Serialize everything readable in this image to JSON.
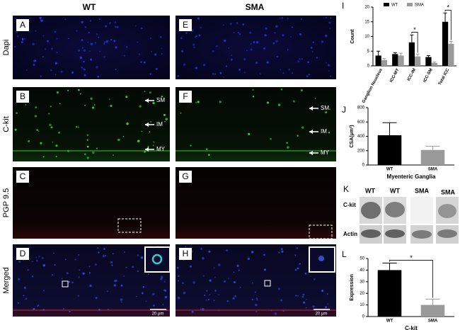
{
  "figure": {
    "columns": [
      "WT",
      "SMA"
    ],
    "rows": [
      "Dapi",
      "C-kit",
      "PGP 9.5",
      "Merged"
    ],
    "panel_letters": [
      [
        "A",
        "E"
      ],
      [
        "B",
        "F"
      ],
      [
        "C",
        "G"
      ],
      [
        "D",
        "H"
      ]
    ],
    "layer_labels": [
      "SM",
      "IM",
      "MY"
    ],
    "scale_bar": "20 μm"
  },
  "blot": {
    "panel": "K",
    "lanes": [
      "WT",
      "WT",
      "SMA",
      "SMA"
    ],
    "bands": [
      "C-kit",
      "Actin"
    ]
  },
  "chart_data": [
    {
      "type": "bar",
      "panel": "I",
      "ylabel": "Count",
      "ylim": [
        0,
        20
      ],
      "yticks": [
        0,
        5,
        10,
        15,
        20
      ],
      "categories": [
        "Ganglion Neucleus",
        "ICC-MY",
        "ICC-IM",
        "ICC-SM",
        "Total ICC"
      ],
      "series": [
        {
          "name": "WT",
          "color": "#000000",
          "values": [
            3.5,
            4,
            8,
            3,
            15
          ],
          "errors": [
            1.5,
            0.5,
            2.5,
            0.5,
            3
          ]
        },
        {
          "name": "SMA",
          "color": "#9a9a9a",
          "values": [
            2,
            3.5,
            3.2,
            1,
            7.5
          ],
          "errors": [
            0.5,
            0.8,
            0.8,
            0.3,
            0.8
          ]
        }
      ],
      "annotations": [
        {
          "text": "*",
          "category": "ICC-IM"
        },
        {
          "text": "*",
          "category": "Total ICC"
        }
      ]
    },
    {
      "type": "bar",
      "panel": "J",
      "ylabel": "CSA(μm²)",
      "xlabel": "Myenteric Ganglia",
      "ylim": [
        0,
        800
      ],
      "yticks": [
        0,
        200,
        400,
        600,
        800
      ],
      "categories": [
        "WT",
        "SMA"
      ],
      "values": [
        415,
        210
      ],
      "errors": [
        175,
        50
      ],
      "colors": [
        "#000000",
        "#9a9a9a"
      ]
    },
    {
      "type": "bar",
      "panel": "L",
      "ylabel": "Expression",
      "xlabel": "C-kit",
      "ylim": [
        0,
        50
      ],
      "yticks": [
        0,
        10,
        20,
        30,
        40,
        50
      ],
      "categories": [
        "WT",
        "SMA"
      ],
      "values": [
        40,
        10
      ],
      "errors": [
        6,
        5
      ],
      "colors": [
        "#000000",
        "#9a9a9a"
      ],
      "annotations": [
        {
          "text": "*"
        }
      ]
    }
  ]
}
